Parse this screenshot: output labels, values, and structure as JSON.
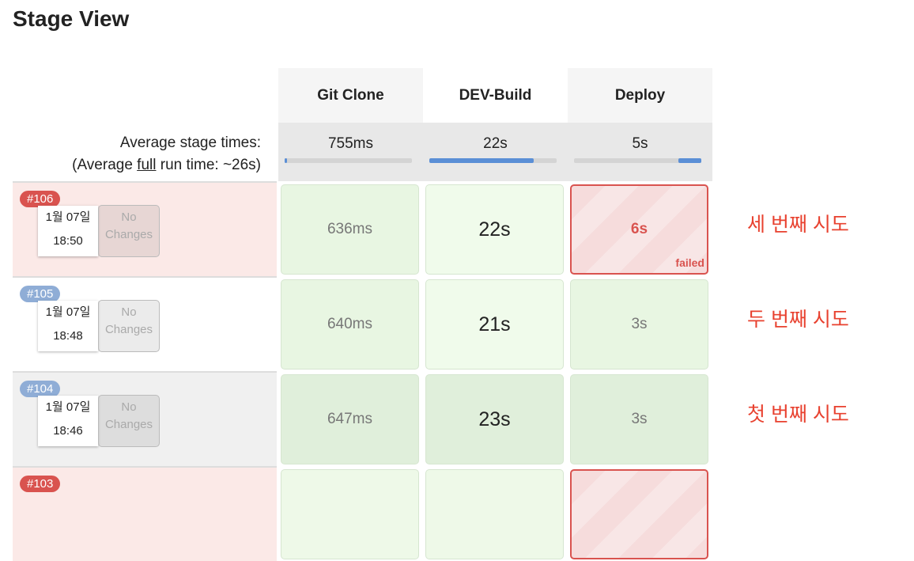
{
  "title": "Stage View",
  "stages": [
    {
      "name": "Git Clone",
      "avg": "755ms",
      "bar": [
        0,
        0.02
      ]
    },
    {
      "name": "DEV-Build",
      "avg": "22s",
      "bar": [
        0,
        0.82
      ]
    },
    {
      "name": "Deploy",
      "avg": "5s",
      "bar": [
        0.82,
        1
      ]
    }
  ],
  "avg_label": {
    "line1": "Average stage times:",
    "line2_pre": "(Average ",
    "line2_link": "full",
    "line2_post": " run time: ~26s)"
  },
  "builds": [
    {
      "number": "#106",
      "status": "failed",
      "date": "1월 07일",
      "time": "18:50",
      "changes": "No Changes",
      "cells": [
        "636ms",
        "22s",
        "6s"
      ],
      "cell_status": [
        "success",
        "success",
        "failed"
      ],
      "failed_label": "failed",
      "note": "세 번째 시도"
    },
    {
      "number": "#105",
      "status": "success",
      "date": "1월 07일",
      "time": "18:48",
      "changes": "No Changes",
      "cells": [
        "640ms",
        "21s",
        "3s"
      ],
      "cell_status": [
        "success",
        "success",
        "success"
      ],
      "note": "두 번째 시도"
    },
    {
      "number": "#104",
      "status": "success",
      "date": "1월 07일",
      "time": "18:46",
      "changes": "No Changes",
      "cells": [
        "647ms",
        "23s",
        "3s"
      ],
      "cell_status": [
        "success",
        "success",
        "success"
      ],
      "note": "첫 번째 시도"
    },
    {
      "number": "#103",
      "status": "failed"
    }
  ],
  "colors": {
    "failed": "#d9534f",
    "success_badge": "#8fadd6",
    "note": "#e8412f",
    "bar": "#5b8fd6"
  }
}
